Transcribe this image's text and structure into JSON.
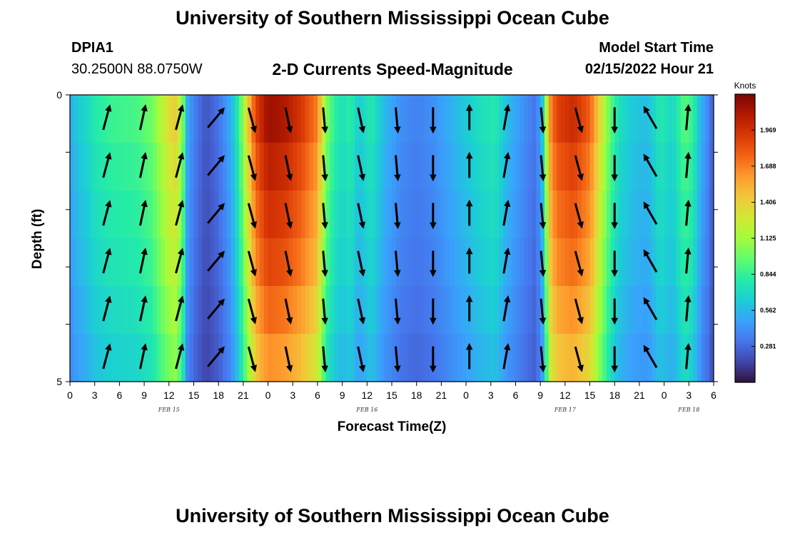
{
  "header": {
    "title": "University of Southern Mississippi Ocean Cube",
    "station_id": "DPIA1",
    "station_coords": "30.2500N  88.0750W",
    "plot_title": "2-D Currents Speed-Magnitude",
    "start_label": "Model Start Time",
    "start_value": "02/15/2022 Hour 21"
  },
  "footer": {
    "title": "University of Southern Mississippi Ocean Cube"
  },
  "chart_data": {
    "type": "heatmap",
    "title": "2-D Currents Speed-Magnitude",
    "xlabel": "Forecast Time(Z)",
    "ylabel": "Depth (ft)",
    "x_range_hours": [
      0,
      78
    ],
    "y_range": [
      0,
      5
    ],
    "y_ticks": [
      "0",
      "5"
    ],
    "x_ticks": [
      {
        "h": 0,
        "label": "0"
      },
      {
        "h": 3,
        "label": "3"
      },
      {
        "h": 6,
        "label": "6"
      },
      {
        "h": 9,
        "label": "9"
      },
      {
        "h": 12,
        "label": "12"
      },
      {
        "h": 15,
        "label": "15"
      },
      {
        "h": 18,
        "label": "18"
      },
      {
        "h": 21,
        "label": "21"
      },
      {
        "h": 24,
        "label": "0"
      },
      {
        "h": 27,
        "label": "3"
      },
      {
        "h": 30,
        "label": "6"
      },
      {
        "h": 33,
        "label": "9"
      },
      {
        "h": 36,
        "label": "12"
      },
      {
        "h": 39,
        "label": "15"
      },
      {
        "h": 42,
        "label": "18"
      },
      {
        "h": 45,
        "label": "21"
      },
      {
        "h": 48,
        "label": "0"
      },
      {
        "h": 51,
        "label": "3"
      },
      {
        "h": 54,
        "label": "6"
      },
      {
        "h": 57,
        "label": "9"
      },
      {
        "h": 60,
        "label": "12"
      },
      {
        "h": 63,
        "label": "15"
      },
      {
        "h": 66,
        "label": "18"
      },
      {
        "h": 69,
        "label": "21"
      },
      {
        "h": 72,
        "label": "0"
      },
      {
        "h": 75,
        "label": "3"
      },
      {
        "h": 78,
        "label": "6"
      }
    ],
    "day_labels": [
      {
        "h": 12,
        "label": "FEB 15"
      },
      {
        "h": 36,
        "label": "FEB 16"
      },
      {
        "h": 60,
        "label": "FEB 17"
      },
      {
        "h": 75,
        "label": "FEB 18"
      }
    ],
    "colorbar": {
      "unit": "Knots",
      "range": [
        0.0,
        2.25
      ],
      "ticks": [
        "0.281",
        "0.562",
        "0.844",
        "1.125",
        "1.406",
        "1.688",
        "1.969"
      ],
      "colors": [
        "#30123b",
        "#4145ab",
        "#4675ed",
        "#39a2fc",
        "#1bcfd4",
        "#24eca6",
        "#61fc6c",
        "#a4fc3b",
        "#d1e834",
        "#f3c63a",
        "#fe9b2d",
        "#f36315",
        "#d93806",
        "#b11901",
        "#7a0403"
      ]
    },
    "speed_profile": [
      {
        "h": 0,
        "v": 0.5
      },
      {
        "h": 1,
        "v": 0.6
      },
      {
        "h": 2,
        "v": 0.65
      },
      {
        "h": 3,
        "v": 0.75
      },
      {
        "h": 5,
        "v": 0.82
      },
      {
        "h": 8,
        "v": 0.85
      },
      {
        "h": 10,
        "v": 0.95
      },
      {
        "h": 11.5,
        "v": 1.2
      },
      {
        "h": 12.8,
        "v": 1.35
      },
      {
        "h": 13.6,
        "v": 1.05
      },
      {
        "h": 14.2,
        "v": 0.5
      },
      {
        "h": 15,
        "v": 0.35
      },
      {
        "h": 16.5,
        "v": 0.2
      },
      {
        "h": 18,
        "v": 0.3
      },
      {
        "h": 19.5,
        "v": 0.5
      },
      {
        "h": 20.5,
        "v": 0.8
      },
      {
        "h": 21.5,
        "v": 1.3
      },
      {
        "h": 22.5,
        "v": 1.8
      },
      {
        "h": 24,
        "v": 2.05
      },
      {
        "h": 26,
        "v": 2.0
      },
      {
        "h": 28,
        "v": 1.85
      },
      {
        "h": 30,
        "v": 1.6
      },
      {
        "h": 31,
        "v": 1.0
      },
      {
        "h": 32,
        "v": 0.8
      },
      {
        "h": 33,
        "v": 0.7
      },
      {
        "h": 34,
        "v": 0.78
      },
      {
        "h": 35,
        "v": 0.6
      },
      {
        "h": 36.5,
        "v": 0.75
      },
      {
        "h": 38,
        "v": 0.55
      },
      {
        "h": 40,
        "v": 0.4
      },
      {
        "h": 42,
        "v": 0.35
      },
      {
        "h": 44,
        "v": 0.4
      },
      {
        "h": 46,
        "v": 0.5
      },
      {
        "h": 48,
        "v": 0.6
      },
      {
        "h": 50,
        "v": 0.7
      },
      {
        "h": 51.5,
        "v": 0.75
      },
      {
        "h": 53,
        "v": 0.55
      },
      {
        "h": 55,
        "v": 0.4
      },
      {
        "h": 56.5,
        "v": 0.3
      },
      {
        "h": 57.5,
        "v": 0.7
      },
      {
        "h": 58,
        "v": 1.5
      },
      {
        "h": 59,
        "v": 1.8
      },
      {
        "h": 61,
        "v": 1.9
      },
      {
        "h": 63,
        "v": 1.7
      },
      {
        "h": 64.5,
        "v": 1.2
      },
      {
        "h": 65.5,
        "v": 0.9
      },
      {
        "h": 66.5,
        "v": 0.7
      },
      {
        "h": 68,
        "v": 0.6
      },
      {
        "h": 70,
        "v": 0.55
      },
      {
        "h": 71.5,
        "v": 0.75
      },
      {
        "h": 73,
        "v": 0.65
      },
      {
        "h": 74.5,
        "v": 0.9
      },
      {
        "h": 75.5,
        "v": 0.8
      },
      {
        "h": 76.5,
        "v": 0.5
      },
      {
        "h": 77.5,
        "v": 0.35
      },
      {
        "h": 78,
        "v": 0.2
      }
    ],
    "depth_rows": [
      {
        "row": 1,
        "factor": 1.05
      },
      {
        "row": 2,
        "factor": 1.0
      },
      {
        "row": 3,
        "factor": 0.96
      },
      {
        "row": 4,
        "factor": 0.92
      },
      {
        "row": 5,
        "factor": 0.86
      },
      {
        "row": 6,
        "factor": 0.8
      }
    ],
    "vector_times_hours": [
      4.4,
      8.8,
      13.2,
      17.6,
      22.0,
      26.4,
      30.8,
      35.2,
      39.6,
      44.0,
      48.4,
      52.8,
      57.2,
      61.6,
      66.0,
      70.4,
      74.8
    ],
    "vector_directions_deg": [
      15,
      12,
      15,
      40,
      165,
      168,
      175,
      168,
      175,
      180,
      0,
      10,
      175,
      165,
      180,
      330,
      5
    ],
    "vector_rows": [
      1,
      2,
      3,
      4,
      5,
      6
    ]
  }
}
